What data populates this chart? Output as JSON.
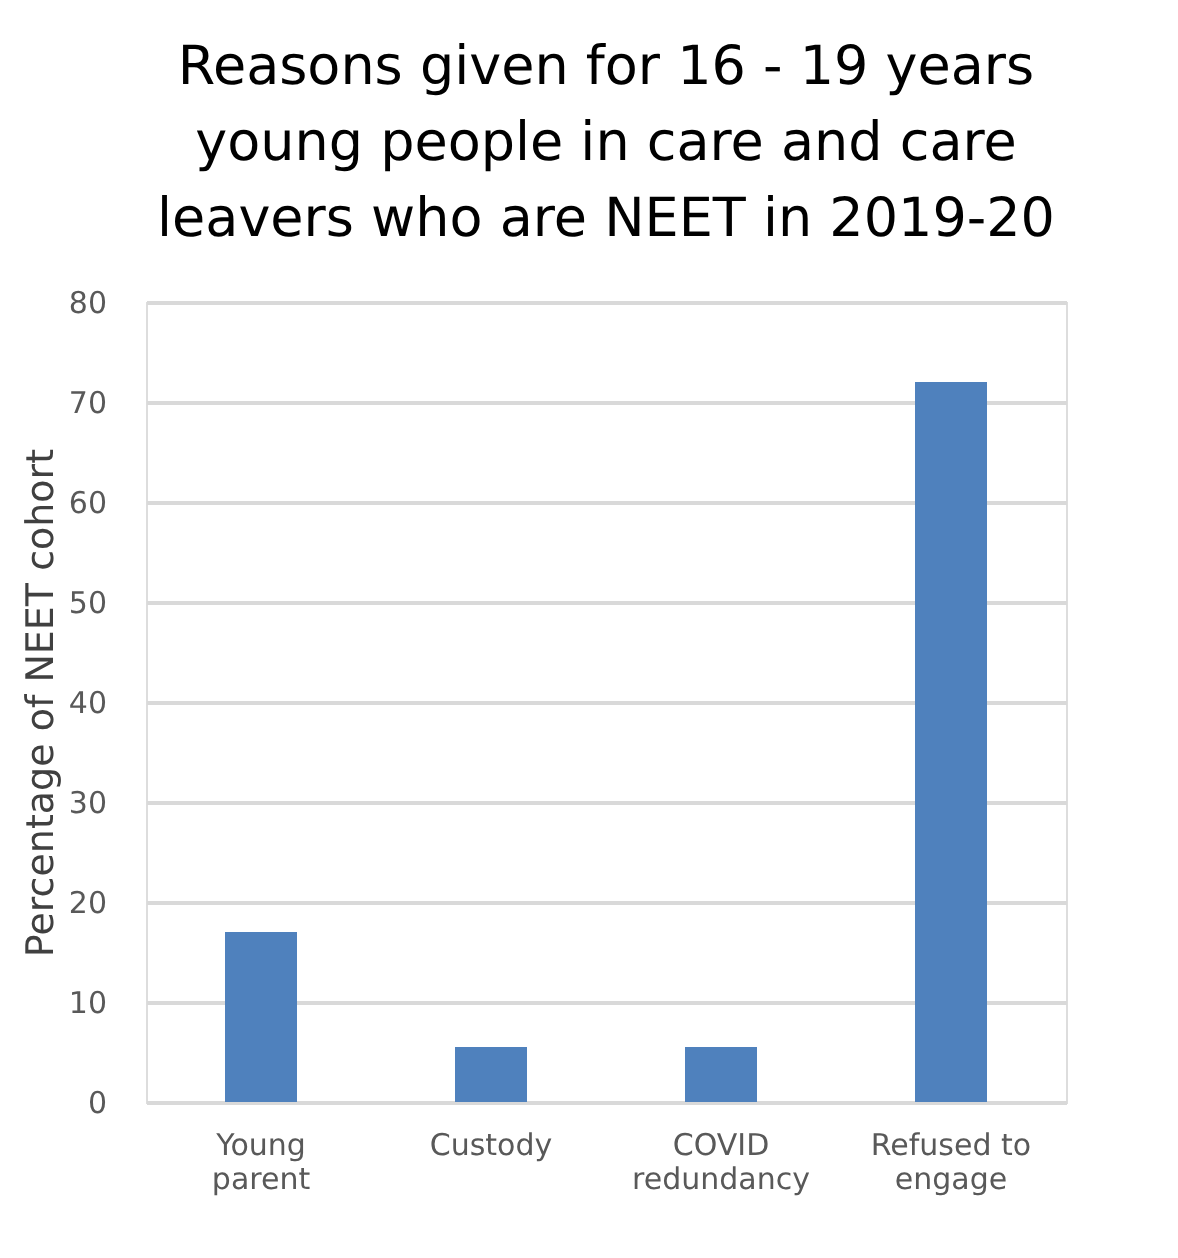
{
  "chart_data": {
    "type": "bar",
    "title": "Reasons given for 16 - 19 years young people in care and care leavers who are NEET in 2019-20",
    "ylabel": "Percentage of NEET cohort",
    "categories": [
      "Young parent",
      "Custody",
      "COVID redundancy",
      "Refused to engage"
    ],
    "values": [
      17,
      5.5,
      5.5,
      72
    ],
    "color": "#4f81bd",
    "ylim": [
      0,
      80
    ],
    "yticks": [
      0,
      10,
      20,
      30,
      40,
      50,
      60,
      70,
      80
    ],
    "grid": "y"
  }
}
